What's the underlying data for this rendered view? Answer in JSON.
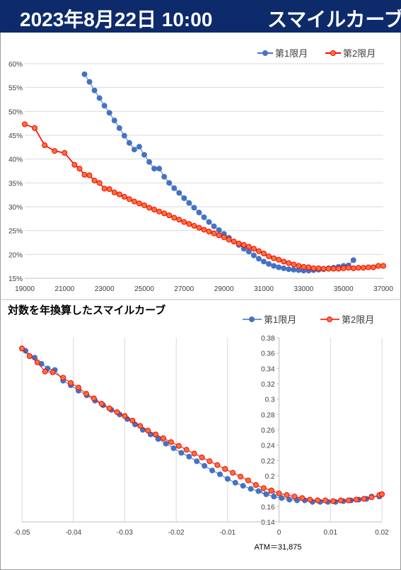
{
  "header": {
    "datetime": "2023年8月22日 10:00",
    "title": "スマイルカーブ"
  },
  "colors": {
    "header_bg": "#0d2a6b",
    "series1": "#4472c4",
    "series2": "#ff0000",
    "series2_fill": "#f4743b"
  },
  "chart_data": [
    {
      "type": "line",
      "title": "",
      "xlabel": "",
      "ylabel": "",
      "xlim": [
        19000,
        37000
      ],
      "ylim": [
        0.15,
        0.6
      ],
      "x_ticks": [
        "19000",
        "21000",
        "23000",
        "25000",
        "27000",
        "29000",
        "31000",
        "33000",
        "35000",
        "37000"
      ],
      "y_ticks": [
        "15%",
        "20%",
        "25%",
        "30%",
        "35%",
        "40%",
        "45%",
        "50%",
        "55%",
        "60%"
      ],
      "grid": "horizontal",
      "legend": "top-right",
      "series": [
        {
          "name": "第1限月",
          "color": "#4472c4",
          "points": [
            [
              22000,
              0.578
            ],
            [
              22250,
              0.562
            ],
            [
              22500,
              0.544
            ],
            [
              22750,
              0.528
            ],
            [
              23000,
              0.512
            ],
            [
              23250,
              0.497
            ],
            [
              23500,
              0.481
            ],
            [
              23750,
              0.465
            ],
            [
              24000,
              0.449
            ],
            [
              24250,
              0.434
            ],
            [
              24500,
              0.42
            ],
            [
              24750,
              0.426
            ],
            [
              25000,
              0.409
            ],
            [
              25250,
              0.394
            ],
            [
              25500,
              0.38
            ],
            [
              25750,
              0.38
            ],
            [
              26000,
              0.363
            ],
            [
              26250,
              0.35
            ],
            [
              26500,
              0.339
            ],
            [
              26750,
              0.329
            ],
            [
              27000,
              0.318
            ],
            [
              27250,
              0.308
            ],
            [
              27500,
              0.298
            ],
            [
              27750,
              0.288
            ],
            [
              28000,
              0.278
            ],
            [
              28250,
              0.268
            ],
            [
              28500,
              0.259
            ],
            [
              28750,
              0.251
            ],
            [
              29000,
              0.243
            ],
            [
              29250,
              0.235
            ],
            [
              29500,
              0.227
            ],
            [
              29750,
              0.22
            ],
            [
              30000,
              0.212
            ],
            [
              30250,
              0.206
            ],
            [
              30500,
              0.198
            ],
            [
              30750,
              0.191
            ],
            [
              31000,
              0.185
            ],
            [
              31250,
              0.18
            ],
            [
              31500,
              0.176
            ],
            [
              31750,
              0.173
            ],
            [
              32000,
              0.171
            ],
            [
              32250,
              0.169
            ],
            [
              32500,
              0.168
            ],
            [
              32750,
              0.167
            ],
            [
              33000,
              0.166
            ],
            [
              33250,
              0.166
            ],
            [
              33500,
              0.167
            ],
            [
              33750,
              0.168
            ],
            [
              34000,
              0.169
            ],
            [
              34250,
              0.171
            ],
            [
              34500,
              0.172
            ],
            [
              34750,
              0.174
            ],
            [
              35000,
              0.176
            ],
            [
              35250,
              0.177
            ],
            [
              35500,
              0.188
            ]
          ]
        },
        {
          "name": "第2限月",
          "color": "#ff0000",
          "points": [
            [
              19000,
              0.473
            ],
            [
              19500,
              0.465
            ],
            [
              20000,
              0.429
            ],
            [
              20500,
              0.417
            ],
            [
              21000,
              0.413
            ],
            [
              21500,
              0.388
            ],
            [
              21750,
              0.38
            ],
            [
              22000,
              0.367
            ],
            [
              22250,
              0.366
            ],
            [
              22500,
              0.355
            ],
            [
              22750,
              0.35
            ],
            [
              23000,
              0.338
            ],
            [
              23250,
              0.337
            ],
            [
              23500,
              0.33
            ],
            [
              23750,
              0.326
            ],
            [
              24000,
              0.321
            ],
            [
              24250,
              0.316
            ],
            [
              24500,
              0.311
            ],
            [
              24750,
              0.307
            ],
            [
              25000,
              0.303
            ],
            [
              25250,
              0.298
            ],
            [
              25500,
              0.294
            ],
            [
              25750,
              0.29
            ],
            [
              26000,
              0.286
            ],
            [
              26250,
              0.282
            ],
            [
              26500,
              0.277
            ],
            [
              26750,
              0.273
            ],
            [
              27000,
              0.268
            ],
            [
              27250,
              0.264
            ],
            [
              27500,
              0.26
            ],
            [
              27750,
              0.256
            ],
            [
              28000,
              0.252
            ],
            [
              28250,
              0.248
            ],
            [
              28500,
              0.244
            ],
            [
              28750,
              0.24
            ],
            [
              29000,
              0.236
            ],
            [
              29250,
              0.231
            ],
            [
              29500,
              0.227
            ],
            [
              29750,
              0.223
            ],
            [
              30000,
              0.22
            ],
            [
              30250,
              0.216
            ],
            [
              30500,
              0.212
            ],
            [
              30750,
              0.207
            ],
            [
              31000,
              0.202
            ],
            [
              31250,
              0.196
            ],
            [
              31500,
              0.192
            ],
            [
              31750,
              0.189
            ],
            [
              32000,
              0.185
            ],
            [
              32250,
              0.182
            ],
            [
              32500,
              0.179
            ],
            [
              32750,
              0.176
            ],
            [
              33000,
              0.174
            ],
            [
              33250,
              0.173
            ],
            [
              33500,
              0.171
            ],
            [
              33750,
              0.171
            ],
            [
              34000,
              0.17
            ],
            [
              34250,
              0.17
            ],
            [
              34500,
              0.17
            ],
            [
              34750,
              0.17
            ],
            [
              35000,
              0.171
            ],
            [
              35250,
              0.172
            ],
            [
              35500,
              0.171
            ],
            [
              35750,
              0.172
            ],
            [
              36000,
              0.172
            ],
            [
              36250,
              0.173
            ],
            [
              36500,
              0.173
            ],
            [
              36750,
              0.176
            ],
            [
              37000,
              0.176
            ]
          ]
        }
      ]
    },
    {
      "type": "scatter",
      "title": "対数を年換算したスマイルカーブ",
      "xlabel": "",
      "ylabel": "",
      "xlim": [
        -0.05,
        0.02
      ],
      "ylim": [
        0.14,
        0.38
      ],
      "x_ticks": [
        "-0.05",
        "-0.04",
        "-0.03",
        "-0.02",
        "-0.01",
        "0",
        "0.01",
        "0.02"
      ],
      "y_ticks": [
        "0.14",
        "0.16",
        "0.18",
        "0.2",
        "0.22",
        "0.24",
        "0.26",
        "0.28",
        "0.3",
        "0.32",
        "0.34",
        "0.36",
        "0.38"
      ],
      "grid": "vertical",
      "legend": "top-right",
      "annotation": "ATM＝31,875",
      "series": [
        {
          "name": "第1限月",
          "color": "#4472c4",
          "points": [
            [
              -0.0493,
              0.363
            ],
            [
              -0.0475,
              0.354
            ],
            [
              -0.0462,
              0.346
            ],
            [
              -0.045,
              0.34
            ],
            [
              -0.0436,
              0.338
            ],
            [
              -0.042,
              0.324
            ],
            [
              -0.0405,
              0.318
            ],
            [
              -0.039,
              0.311
            ],
            [
              -0.0374,
              0.305
            ],
            [
              -0.0358,
              0.298
            ],
            [
              -0.0342,
              0.292
            ],
            [
              -0.0326,
              0.286
            ],
            [
              -0.031,
              0.28
            ],
            [
              -0.0295,
              0.274
            ],
            [
              -0.028,
              0.267
            ],
            [
              -0.0265,
              0.26
            ],
            [
              -0.025,
              0.254
            ],
            [
              -0.0235,
              0.248
            ],
            [
              -0.022,
              0.242
            ],
            [
              -0.0205,
              0.236
            ],
            [
              -0.019,
              0.23
            ],
            [
              -0.0175,
              0.225
            ],
            [
              -0.016,
              0.219
            ],
            [
              -0.0145,
              0.213
            ],
            [
              -0.013,
              0.207
            ],
            [
              -0.0115,
              0.202
            ],
            [
              -0.01,
              0.196
            ],
            [
              -0.0085,
              0.191
            ],
            [
              -0.007,
              0.187
            ],
            [
              -0.0055,
              0.183
            ],
            [
              -0.004,
              0.18
            ],
            [
              -0.0025,
              0.176
            ],
            [
              -0.001,
              0.173
            ],
            [
              0.0005,
              0.171
            ],
            [
              0.002,
              0.169
            ],
            [
              0.0035,
              0.168
            ],
            [
              0.005,
              0.168
            ],
            [
              0.0065,
              0.166
            ],
            [
              0.008,
              0.166
            ],
            [
              0.0095,
              0.166
            ],
            [
              0.011,
              0.166
            ],
            [
              0.0125,
              0.167
            ],
            [
              0.014,
              0.168
            ],
            [
              0.0155,
              0.169
            ],
            [
              0.017,
              0.17
            ],
            [
              0.018,
              0.173
            ],
            [
              0.0195,
              0.173
            ]
          ]
        },
        {
          "name": "第2限月",
          "color": "#ff0000",
          "points": [
            [
              -0.05,
              0.366
            ],
            [
              -0.0485,
              0.356
            ],
            [
              -0.047,
              0.348
            ],
            [
              -0.0455,
              0.336
            ],
            [
              -0.044,
              0.335
            ],
            [
              -0.042,
              0.328
            ],
            [
              -0.0405,
              0.321
            ],
            [
              -0.039,
              0.315
            ],
            [
              -0.0375,
              0.307
            ],
            [
              -0.036,
              0.301
            ],
            [
              -0.0345,
              0.294
            ],
            [
              -0.033,
              0.288
            ],
            [
              -0.0315,
              0.283
            ],
            [
              -0.03,
              0.278
            ],
            [
              -0.0285,
              0.272
            ],
            [
              -0.027,
              0.265
            ],
            [
              -0.0255,
              0.259
            ],
            [
              -0.024,
              0.254
            ],
            [
              -0.0225,
              0.249
            ],
            [
              -0.021,
              0.244
            ],
            [
              -0.0195,
              0.239
            ],
            [
              -0.018,
              0.234
            ],
            [
              -0.0165,
              0.229
            ],
            [
              -0.015,
              0.224
            ],
            [
              -0.0135,
              0.219
            ],
            [
              -0.012,
              0.214
            ],
            [
              -0.0105,
              0.209
            ],
            [
              -0.009,
              0.204
            ],
            [
              -0.0075,
              0.199
            ],
            [
              -0.006,
              0.194
            ],
            [
              -0.0045,
              0.188
            ],
            [
              -0.003,
              0.184
            ],
            [
              -0.0015,
              0.181
            ],
            [
              0.0,
              0.177
            ],
            [
              0.0015,
              0.175
            ],
            [
              0.003,
              0.173
            ],
            [
              0.0045,
              0.171
            ],
            [
              0.006,
              0.169
            ],
            [
              0.0075,
              0.168
            ],
            [
              0.009,
              0.168
            ],
            [
              0.0105,
              0.167
            ],
            [
              0.012,
              0.168
            ],
            [
              0.0135,
              0.168
            ],
            [
              0.015,
              0.169
            ],
            [
              0.0165,
              0.17
            ],
            [
              0.018,
              0.172
            ],
            [
              0.0195,
              0.175
            ],
            [
              0.02,
              0.176
            ]
          ]
        }
      ]
    }
  ]
}
